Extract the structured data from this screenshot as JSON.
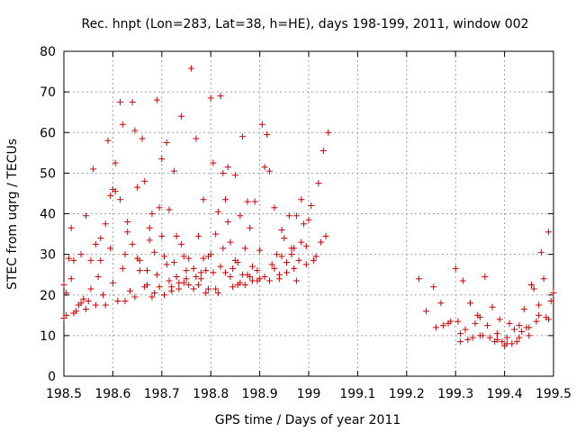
{
  "chart_data": {
    "type": "scatter",
    "title": "Rec. hnpt (Lon=283, Lat=38, h=HE), days 198-199, 2011, window 002",
    "xlabel": "GPS time / Days of year 2011",
    "ylabel": "STEC from uqrg / TECUs",
    "xlim": [
      198.5,
      199.5
    ],
    "ylim": [
      0,
      80
    ],
    "grid": true,
    "marker": "+",
    "color": "#cc0000",
    "xticks": [
      198.5,
      198.6,
      198.7,
      198.8,
      198.9,
      199,
      199.1,
      199.2,
      199.3,
      199.4,
      199.5
    ],
    "xtick_labels": [
      "198.5",
      "198.6",
      "198.7",
      "198.8",
      "198.9",
      "199",
      "199.1",
      "199.2",
      "199.3",
      "199.4",
      "199.5"
    ],
    "yticks": [
      0,
      10,
      20,
      30,
      40,
      50,
      60,
      70,
      80
    ],
    "ytick_labels": [
      "0",
      "10",
      "20",
      "30",
      "40",
      "50",
      "60",
      "70",
      "80"
    ],
    "points": [
      [
        198.5,
        14.3
      ],
      [
        198.505,
        15.0
      ],
      [
        198.51,
        29.0
      ],
      [
        198.515,
        36.5
      ],
      [
        198.52,
        28.5
      ],
      [
        198.525,
        16.0
      ],
      [
        198.53,
        17.5
      ],
      [
        198.535,
        30.0
      ],
      [
        198.54,
        19.0
      ],
      [
        198.545,
        39.5
      ],
      [
        198.55,
        18.5
      ],
      [
        198.555,
        28.5
      ],
      [
        198.56,
        51.0
      ],
      [
        198.565,
        32.5
      ],
      [
        198.57,
        24.5
      ],
      [
        198.575,
        34.0
      ],
      [
        198.58,
        20.0
      ],
      [
        198.585,
        37.5
      ],
      [
        198.59,
        58.0
      ],
      [
        198.595,
        44.5
      ],
      [
        198.6,
        46.0
      ],
      [
        198.605,
        52.5
      ],
      [
        198.61,
        18.5
      ],
      [
        198.615,
        67.5
      ],
      [
        198.62,
        62.0
      ],
      [
        198.625,
        30.0
      ],
      [
        198.63,
        38.0
      ],
      [
        198.635,
        21.0
      ],
      [
        198.64,
        67.5
      ],
      [
        198.645,
        60.5
      ],
      [
        198.65,
        46.5
      ],
      [
        198.655,
        26.0
      ],
      [
        198.66,
        58.5
      ],
      [
        198.665,
        48.0
      ],
      [
        198.67,
        22.5
      ],
      [
        198.675,
        36.5
      ],
      [
        198.68,
        40.0
      ],
      [
        198.685,
        20.5
      ],
      [
        198.69,
        68.0
      ],
      [
        198.695,
        41.5
      ],
      [
        198.7,
        53.5
      ],
      [
        198.705,
        29.5
      ],
      [
        198.71,
        57.5
      ],
      [
        198.715,
        41.0
      ],
      [
        198.72,
        22.0
      ],
      [
        198.725,
        50.5
      ],
      [
        198.73,
        34.5
      ],
      [
        198.735,
        23.0
      ],
      [
        198.74,
        64.0
      ],
      [
        198.745,
        29.5
      ],
      [
        198.75,
        26.0
      ],
      [
        198.755,
        22.5
      ],
      [
        198.76,
        75.8
      ],
      [
        198.765,
        21.5
      ],
      [
        198.77,
        58.5
      ],
      [
        198.775,
        34.5
      ],
      [
        198.78,
        25.5
      ],
      [
        198.785,
        43.5
      ],
      [
        198.79,
        20.5
      ],
      [
        198.795,
        29.5
      ],
      [
        198.8,
        68.5
      ],
      [
        198.805,
        52.5
      ],
      [
        198.81,
        35.0
      ],
      [
        198.815,
        20.5
      ],
      [
        198.82,
        69.0
      ],
      [
        198.825,
        50.0
      ],
      [
        198.83,
        43.5
      ],
      [
        198.835,
        51.5
      ],
      [
        198.84,
        33.0
      ],
      [
        198.845,
        22.0
      ],
      [
        198.85,
        49.5
      ],
      [
        198.855,
        28.0
      ],
      [
        198.86,
        23.0
      ],
      [
        198.865,
        59.0
      ],
      [
        198.87,
        31.5
      ],
      [
        198.875,
        25.0
      ],
      [
        198.88,
        36.5
      ],
      [
        198.885,
        23.5
      ],
      [
        198.89,
        43.0
      ],
      [
        198.895,
        26.0
      ],
      [
        198.9,
        24.0
      ],
      [
        198.905,
        62.0
      ],
      [
        198.91,
        51.5
      ],
      [
        198.915,
        59.5
      ],
      [
        198.92,
        50.5
      ],
      [
        198.925,
        27.5
      ],
      [
        198.93,
        41.5
      ],
      [
        198.935,
        30.0
      ],
      [
        198.94,
        25.0
      ],
      [
        198.945,
        36.0
      ],
      [
        198.95,
        34.0
      ],
      [
        198.955,
        28.0
      ],
      [
        198.96,
        39.5
      ],
      [
        198.965,
        31.5
      ],
      [
        198.97,
        26.5
      ],
      [
        198.975,
        39.5
      ],
      [
        198.98,
        28.5
      ],
      [
        198.985,
        43.5
      ],
      [
        198.99,
        37.5
      ],
      [
        198.995,
        27.5
      ],
      [
        199.0,
        38.5
      ],
      [
        199.005,
        42.0
      ],
      [
        199.01,
        28.5
      ],
      [
        199.015,
        29.5
      ],
      [
        199.02,
        47.5
      ],
      [
        199.025,
        33.0
      ],
      [
        199.03,
        55.5
      ],
      [
        199.035,
        34.5
      ],
      [
        199.04,
        60.0
      ],
      [
        198.5,
        22.5
      ],
      [
        198.505,
        20.5
      ],
      [
        198.515,
        24.0
      ],
      [
        198.52,
        15.5
      ],
      [
        198.535,
        18.0
      ],
      [
        198.545,
        16.5
      ],
      [
        198.555,
        21.5
      ],
      [
        198.565,
        17.5
      ],
      [
        198.575,
        28.5
      ],
      [
        198.585,
        17.5
      ],
      [
        198.595,
        31.5
      ],
      [
        198.6,
        23.0
      ],
      [
        198.605,
        45.5
      ],
      [
        198.615,
        43.5
      ],
      [
        198.62,
        26.5
      ],
      [
        198.625,
        18.5
      ],
      [
        198.63,
        35.5
      ],
      [
        198.64,
        32.5
      ],
      [
        198.645,
        19.5
      ],
      [
        198.65,
        29.0
      ],
      [
        198.655,
        28.5
      ],
      [
        198.665,
        22.0
      ],
      [
        198.67,
        26.0
      ],
      [
        198.675,
        33.5
      ],
      [
        198.68,
        19.5
      ],
      [
        198.685,
        30.5
      ],
      [
        198.69,
        25.0
      ],
      [
        198.695,
        22.0
      ],
      [
        198.7,
        34.5
      ],
      [
        198.705,
        20.0
      ],
      [
        198.71,
        27.5
      ],
      [
        198.715,
        23.5
      ],
      [
        198.72,
        21.0
      ],
      [
        198.725,
        28.0
      ],
      [
        198.73,
        24.5
      ],
      [
        198.735,
        21.5
      ],
      [
        198.74,
        32.5
      ],
      [
        198.745,
        23.0
      ],
      [
        198.75,
        24.0
      ],
      [
        198.755,
        29.0
      ],
      [
        198.765,
        26.5
      ],
      [
        198.77,
        24.5
      ],
      [
        198.775,
        22.5
      ],
      [
        198.78,
        24.0
      ],
      [
        198.785,
        29.0
      ],
      [
        198.79,
        26.0
      ],
      [
        198.795,
        21.5
      ],
      [
        198.8,
        30.0
      ],
      [
        198.805,
        25.5
      ],
      [
        198.81,
        21.5
      ],
      [
        198.815,
        40.5
      ],
      [
        198.82,
        27.0
      ],
      [
        198.825,
        31.5
      ],
      [
        198.83,
        25.5
      ],
      [
        198.835,
        38.0
      ],
      [
        198.84,
        24.5
      ],
      [
        198.845,
        26.5
      ],
      [
        198.85,
        28.5
      ],
      [
        198.855,
        22.5
      ],
      [
        198.86,
        39.5
      ],
      [
        198.865,
        25.0
      ],
      [
        198.87,
        22.5
      ],
      [
        198.875,
        43.0
      ],
      [
        198.88,
        24.5
      ],
      [
        198.885,
        27.0
      ],
      [
        198.895,
        23.5
      ],
      [
        198.9,
        31.0
      ],
      [
        198.91,
        24.5
      ],
      [
        198.92,
        23.5
      ],
      [
        198.93,
        26.5
      ],
      [
        198.94,
        24.0
      ],
      [
        198.945,
        29.5
      ],
      [
        198.955,
        25.5
      ],
      [
        198.965,
        30.0
      ],
      [
        198.97,
        31.5
      ],
      [
        198.975,
        23.5
      ],
      [
        198.985,
        33.0
      ],
      [
        198.995,
        32.0
      ],
      [
        199.225,
        24.0
      ],
      [
        199.24,
        16.0
      ],
      [
        199.255,
        22.0
      ],
      [
        199.26,
        12.0
      ],
      [
        199.27,
        18.0
      ],
      [
        199.275,
        12.5
      ],
      [
        199.285,
        13.0
      ],
      [
        199.29,
        13.5
      ],
      [
        199.3,
        26.5
      ],
      [
        199.305,
        13.5
      ],
      [
        199.31,
        10.5
      ],
      [
        199.315,
        23.5
      ],
      [
        199.32,
        11.5
      ],
      [
        199.325,
        9.0
      ],
      [
        199.33,
        18.0
      ],
      [
        199.335,
        9.5
      ],
      [
        199.34,
        13.0
      ],
      [
        199.345,
        15.0
      ],
      [
        199.35,
        14.5
      ],
      [
        199.355,
        10.0
      ],
      [
        199.36,
        24.5
      ],
      [
        199.365,
        12.5
      ],
      [
        199.37,
        9.5
      ],
      [
        199.375,
        17.0
      ],
      [
        199.38,
        8.5
      ],
      [
        199.385,
        10.5
      ],
      [
        199.39,
        14.0
      ],
      [
        199.395,
        8.5
      ],
      [
        199.4,
        7.5
      ],
      [
        199.405,
        9.5
      ],
      [
        199.41,
        13.0
      ],
      [
        199.415,
        8.0
      ],
      [
        199.42,
        11.5
      ],
      [
        199.425,
        8.5
      ],
      [
        199.43,
        12.5
      ],
      [
        199.435,
        11.0
      ],
      [
        199.44,
        16.5
      ],
      [
        199.445,
        12.0
      ],
      [
        199.45,
        10.0
      ],
      [
        199.455,
        22.5
      ],
      [
        199.46,
        21.5
      ],
      [
        199.465,
        13.5
      ],
      [
        199.47,
        17.5
      ],
      [
        199.475,
        30.5
      ],
      [
        199.48,
        24.0
      ],
      [
        199.485,
        14.5
      ],
      [
        199.49,
        35.5
      ],
      [
        199.495,
        18.5
      ],
      [
        199.5,
        20.5
      ],
      [
        199.31,
        8.5
      ],
      [
        199.35,
        10.0
      ],
      [
        199.385,
        9.0
      ],
      [
        199.405,
        8.0
      ],
      [
        199.43,
        9.5
      ],
      [
        199.45,
        12.0
      ],
      [
        199.47,
        15.0
      ],
      [
        199.49,
        14.0
      ]
    ]
  }
}
